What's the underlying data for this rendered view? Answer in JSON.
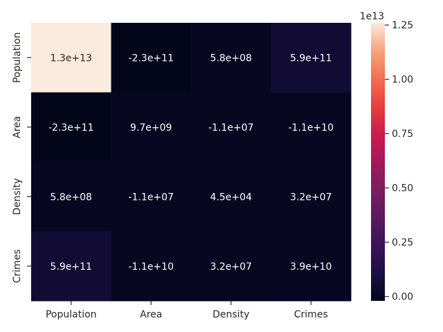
{
  "chart_data": {
    "type": "heatmap",
    "title": "",
    "xlabel": "",
    "ylabel": "",
    "x_labels": [
      "Population",
      "Area",
      "Density",
      "Crimes"
    ],
    "y_labels": [
      "Population",
      "Area",
      "Density",
      "Crimes"
    ],
    "values": [
      [
        13000000000000.0,
        -230000000000.0,
        580000000.0,
        590000000000.0
      ],
      [
        -230000000000.0,
        9700000000.0,
        -11000000.0,
        -11000000000.0
      ],
      [
        580000000.0,
        -11000000.0,
        45000.0,
        32000000.0
      ],
      [
        590000000000.0,
        -11000000000.0,
        32000000.0,
        39000000000.0
      ]
    ],
    "annotations": [
      [
        "1.3e+13",
        "-2.3e+11",
        "5.8e+08",
        "5.9e+11"
      ],
      [
        "-2.3e+11",
        "9.7e+09",
        "-1.1e+07",
        "-1.1e+10"
      ],
      [
        "5.8e+08",
        "-1.1e+07",
        "4.5e+04",
        "3.2e+07"
      ],
      [
        "5.9e+11",
        "-1.1e+10",
        "3.2e+07",
        "3.9e+10"
      ]
    ],
    "colorbar": {
      "range": [
        -0.02,
        1.26
      ],
      "ticks": [
        0.0,
        0.25,
        0.5,
        0.75,
        1.0,
        1.25
      ],
      "tick_labels": [
        "0.00",
        "0.25",
        "0.50",
        "0.75",
        "1.00",
        "1.25"
      ],
      "exponent_label": "1e13",
      "colormap": "rocket"
    },
    "grid": false,
    "legend": "colorbar-right"
  }
}
